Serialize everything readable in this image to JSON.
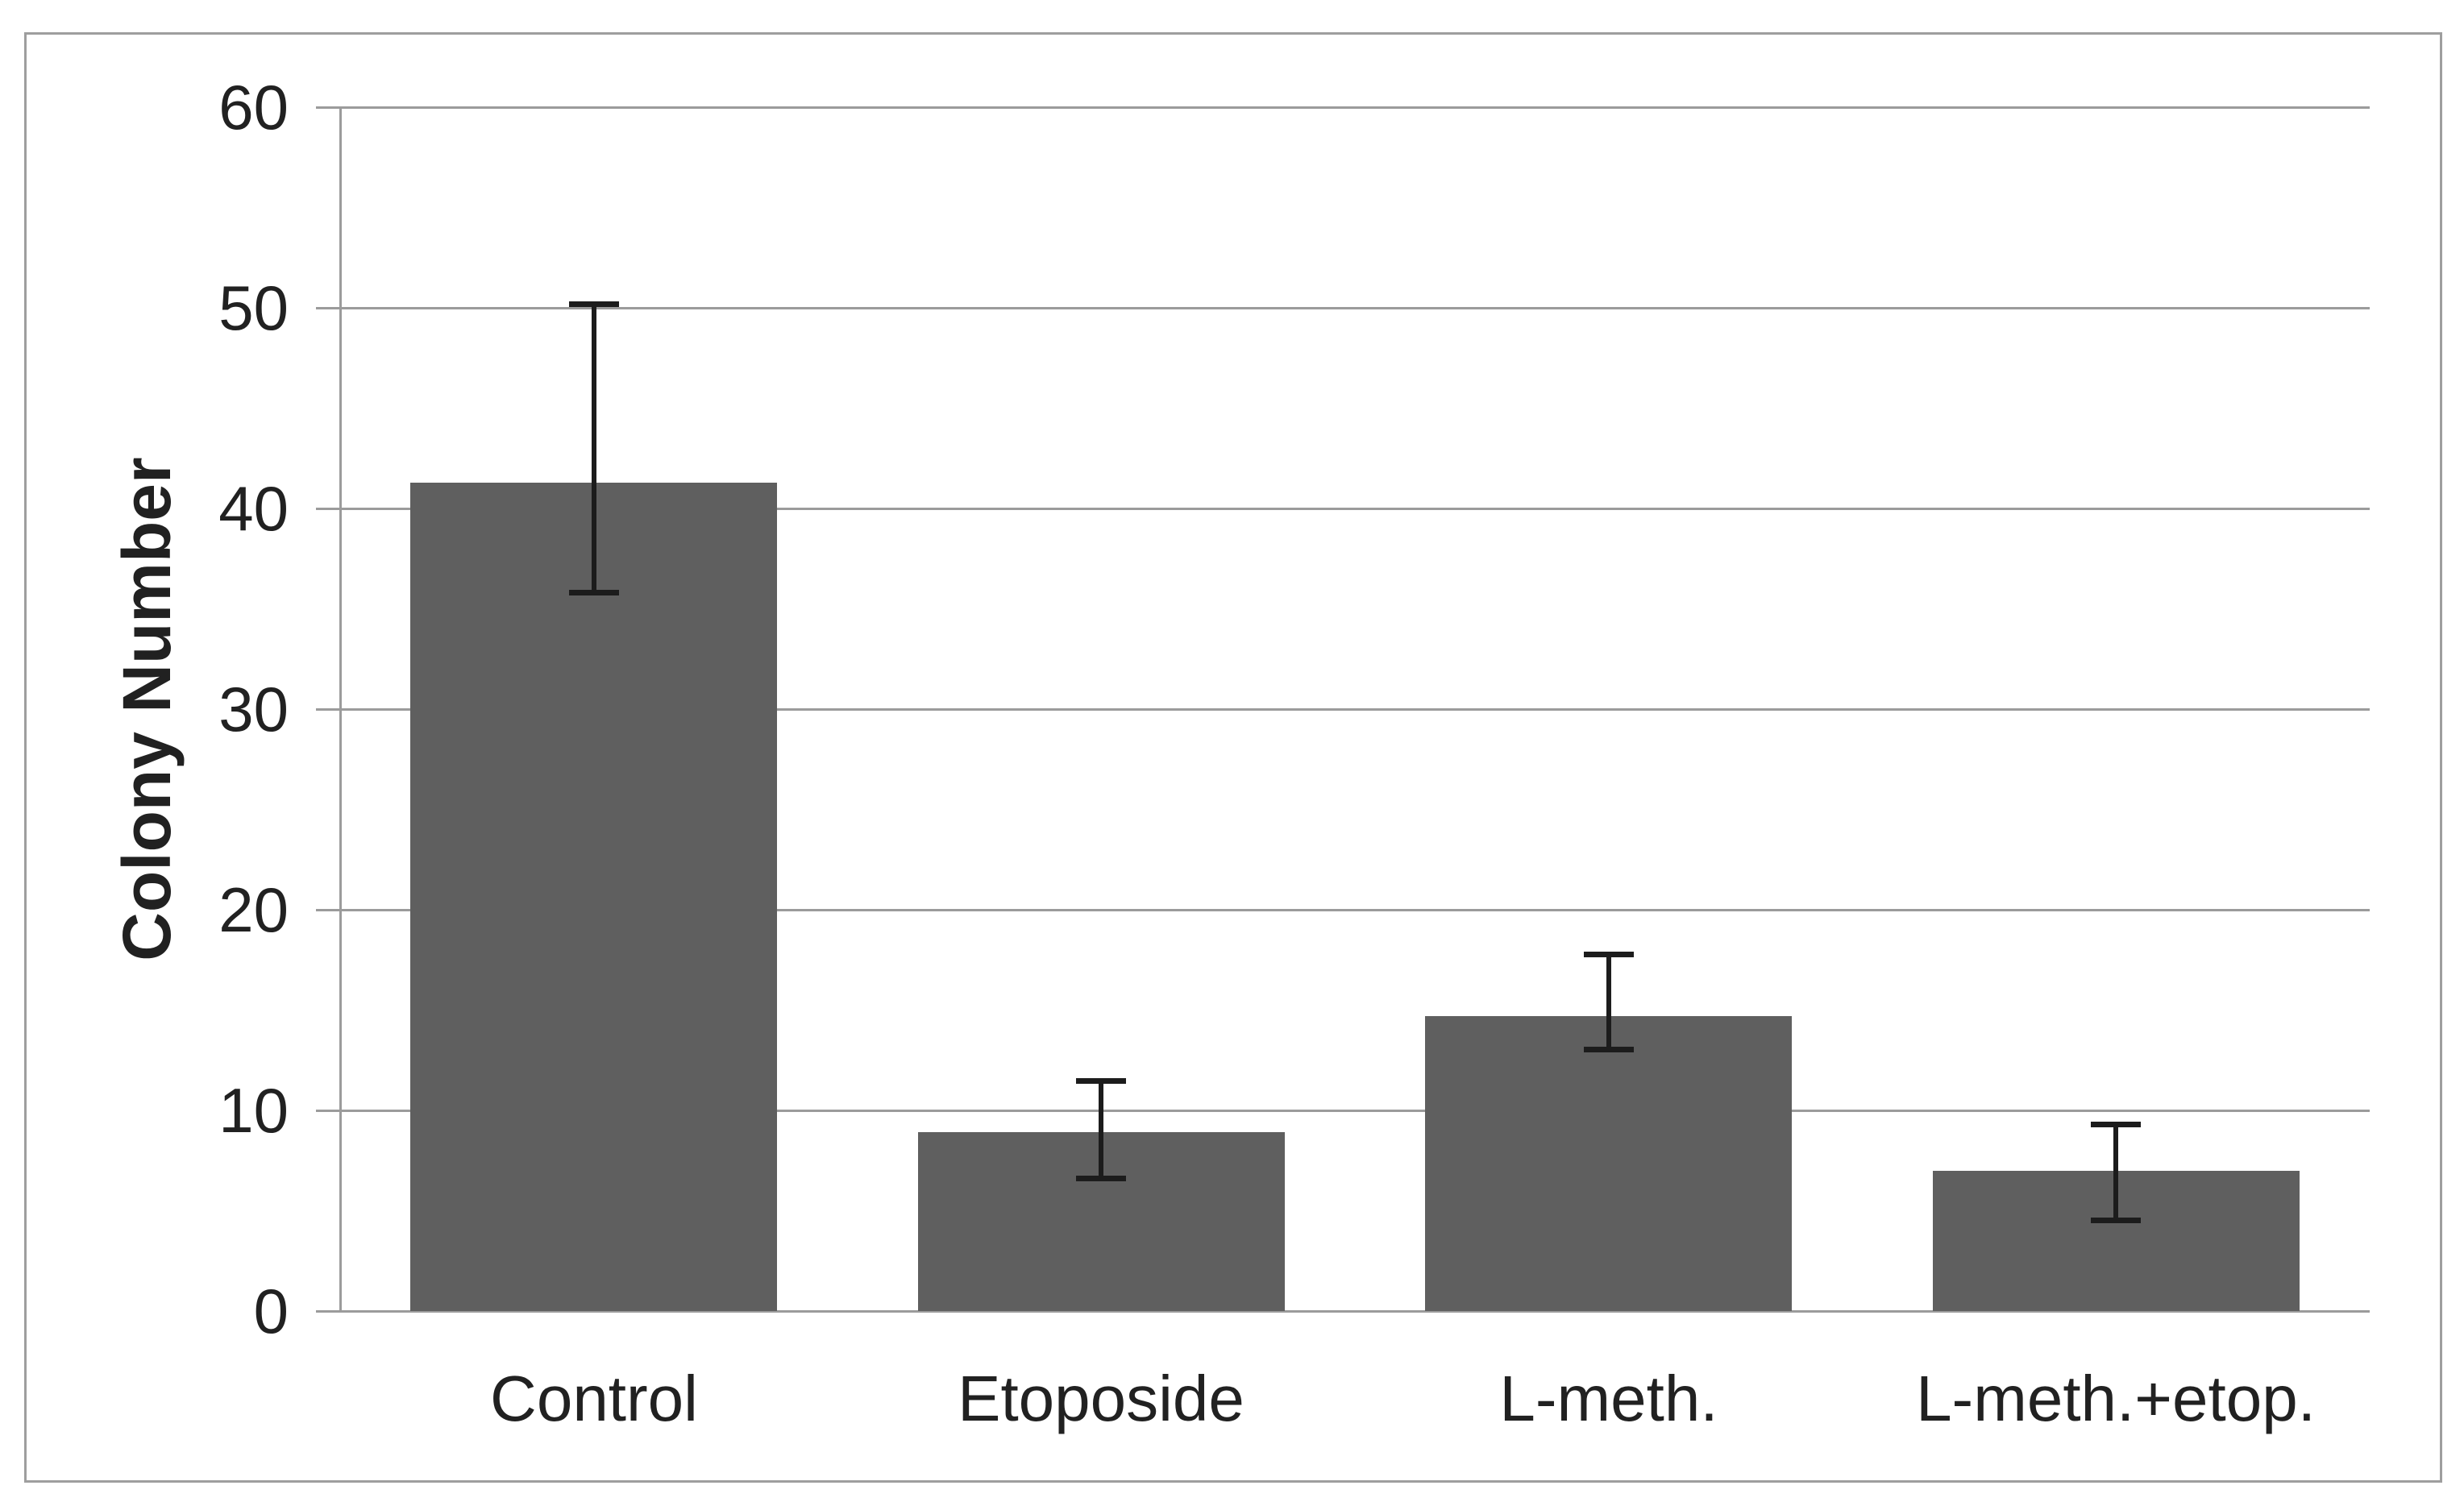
{
  "chart_data": {
    "type": "bar",
    "title": "",
    "categories": [
      "Control",
      "Etoposide",
      "L-meth.",
      "L-meth.+etop."
    ],
    "values": [
      41.3,
      8.9,
      14.7,
      7.0
    ],
    "error_top": [
      50.2,
      11.5,
      17.8,
      9.3
    ],
    "error_bottom": [
      35.8,
      6.6,
      13.0,
      4.5
    ],
    "xlabel": "",
    "ylabel": "Colony Number",
    "ylim": [
      0,
      60
    ],
    "yticks": [
      0,
      10,
      20,
      30,
      40,
      50,
      60
    ],
    "grid": true,
    "legend": false,
    "error_bars": true,
    "colors": {
      "bar": "#5f5f5f",
      "gridline": "#9b9b9b",
      "axis": "#9b9b9b",
      "error_bar": "#1c1c1c",
      "text": "#212121",
      "frame_border": "#9e9e9e",
      "background": "#ffffff"
    }
  }
}
